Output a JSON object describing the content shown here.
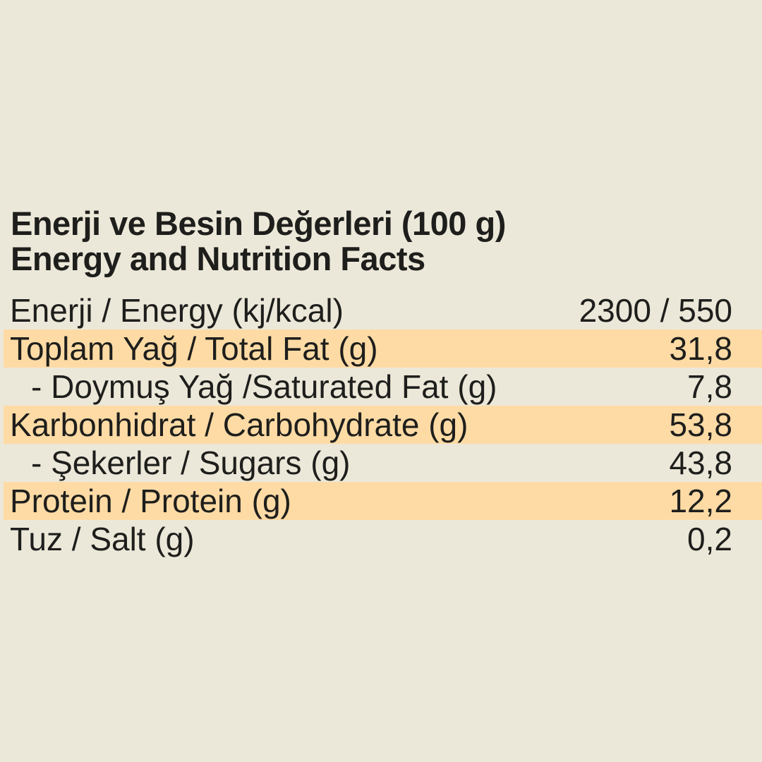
{
  "colors": {
    "background": "#ECE8D9",
    "highlight": "#FEDBA5",
    "text": "#1E1E1C"
  },
  "title": {
    "line1": "Enerji ve Besin Değerleri (100 g)",
    "line2": "Energy and Nutrition Facts"
  },
  "table": {
    "rows": [
      {
        "label": "Enerji / Energy (kj/kcal)",
        "value": "2300 / 550",
        "highlighted": false,
        "indented": false
      },
      {
        "label": "Toplam Yağ / Total Fat (g)",
        "value": "31,8",
        "highlighted": true,
        "indented": false
      },
      {
        "label": "- Doymuş Yağ /Saturated Fat (g)",
        "value": "7,8",
        "highlighted": false,
        "indented": true
      },
      {
        "label": "Karbonhidrat / Carbohydrate (g)",
        "value": "53,8",
        "highlighted": true,
        "indented": false
      },
      {
        "label": "- Şekerler / Sugars (g)",
        "value": "43,8",
        "highlighted": false,
        "indented": true
      },
      {
        "label": "Protein / Protein (g)",
        "value": "12,2",
        "highlighted": true,
        "indented": false
      },
      {
        "label": "Tuz / Salt (g)",
        "value": "0,2",
        "highlighted": false,
        "indented": false
      }
    ]
  }
}
